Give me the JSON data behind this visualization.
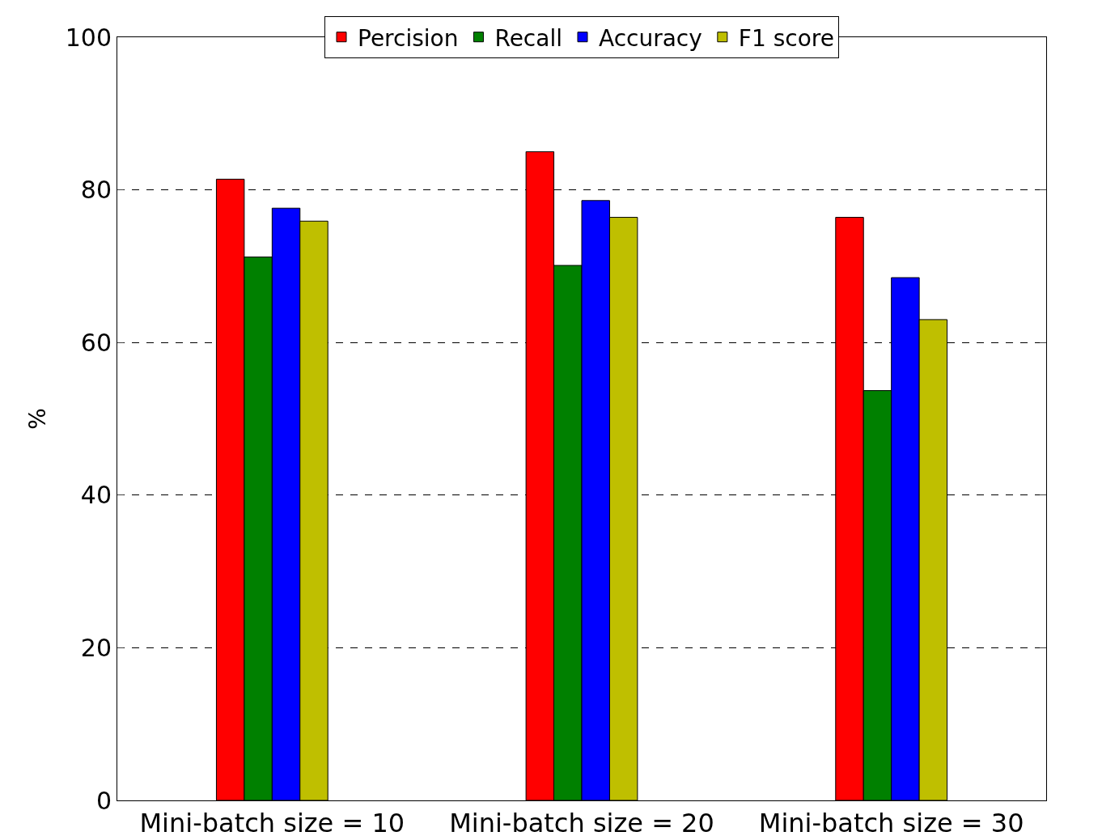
{
  "chart_data": {
    "type": "bar",
    "ylabel": "%",
    "categories": [
      "Mini-batch size = 10",
      "Mini-batch size = 20",
      "Mini-batch size = 30"
    ],
    "series": [
      {
        "name": "Percision",
        "color": "#ff0000",
        "values": [
          81.4,
          85.0,
          76.4
        ]
      },
      {
        "name": "Recall",
        "color": "#008000",
        "values": [
          71.2,
          70.1,
          53.7
        ]
      },
      {
        "name": "Accuracy",
        "color": "#0000ff",
        "values": [
          77.6,
          78.6,
          68.5
        ]
      },
      {
        "name": "F1 score",
        "color": "#bfbf00",
        "values": [
          75.9,
          76.4,
          63.0
        ]
      }
    ],
    "ylim": [
      0,
      100
    ],
    "yticks": [
      0,
      20,
      40,
      60,
      80,
      100
    ],
    "grid": "y",
    "legend": "top"
  }
}
